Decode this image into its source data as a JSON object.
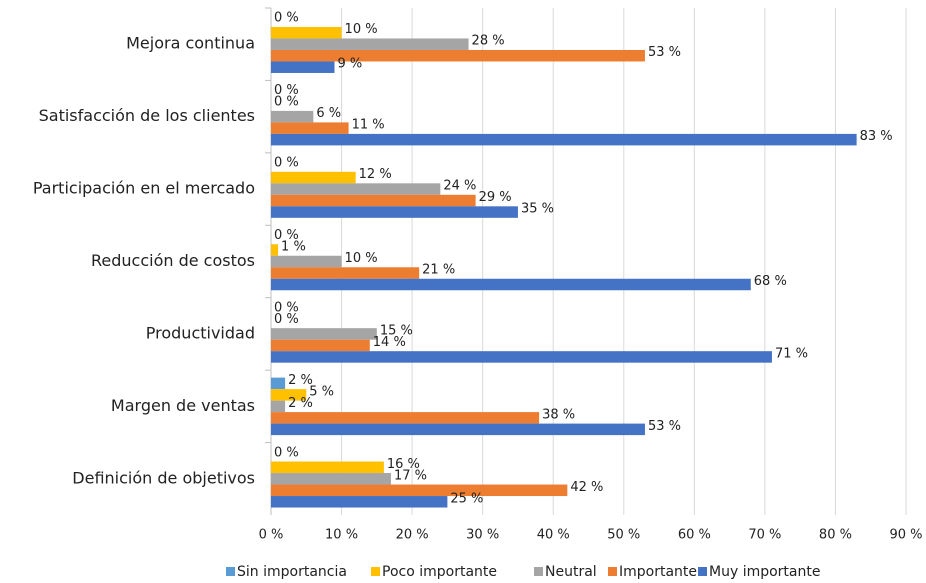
{
  "chart_data": {
    "type": "hbar",
    "categories": [
      "Mejora continua",
      "Satisfacción de los clientes",
      "Participación en el mercado",
      "Reducción de costos",
      "Productividad",
      "Margen de ventas",
      "Definición de objetivos"
    ],
    "series": [
      {
        "name": "Sin importancia",
        "color": "#5b9bd5",
        "values": [
          0,
          0,
          0,
          0,
          0,
          2,
          0
        ],
        "value_labels": [
          "0 %",
          "0 %",
          "0 %",
          "0 %",
          "0 %",
          "2 %",
          "0 %"
        ]
      },
      {
        "name": "Poco importante",
        "color": "#ffc000",
        "values": [
          10,
          0,
          12,
          1,
          0,
          5,
          16
        ],
        "value_labels": [
          "10 %",
          "0 %",
          "12 %",
          "1 %",
          "0 %",
          "5 %",
          "16 %"
        ]
      },
      {
        "name": "Neutral",
        "color": "#a5a5a5",
        "values": [
          28,
          6,
          24,
          10,
          15,
          2,
          17
        ],
        "value_labels": [
          "28 %",
          "6 %",
          "24 %",
          "10 %",
          "15 %",
          "2 %",
          "17 %"
        ]
      },
      {
        "name": "Importante",
        "color": "#ed7d31",
        "values": [
          53,
          11,
          29,
          21,
          14,
          38,
          42
        ],
        "value_labels": [
          "53 %",
          "11 %",
          "29 %",
          "21 %",
          "14 %",
          "38 %",
          "42 %"
        ]
      },
      {
        "name": "Muy importante",
        "color": "#4472c4",
        "values": [
          9,
          83,
          35,
          68,
          71,
          53,
          25
        ],
        "value_labels": [
          "9 %",
          "83 %",
          "35 %",
          "68 %",
          "71 %",
          "53 %",
          "25 %"
        ]
      }
    ],
    "xlim": [
      0,
      90
    ],
    "xticks": [
      {
        "value": 0,
        "label": "0 %"
      },
      {
        "value": 10,
        "label": "10 %"
      },
      {
        "value": 20,
        "label": "20 %"
      },
      {
        "value": 30,
        "label": "30 %"
      },
      {
        "value": 40,
        "label": "40 %"
      },
      {
        "value": 50,
        "label": "50 %"
      },
      {
        "value": 60,
        "label": "60 %"
      },
      {
        "value": 70,
        "label": "70 %"
      },
      {
        "value": 80,
        "label": "80 %"
      },
      {
        "value": 90,
        "label": "90 %"
      }
    ],
    "grid": true,
    "legend": "bottom"
  }
}
